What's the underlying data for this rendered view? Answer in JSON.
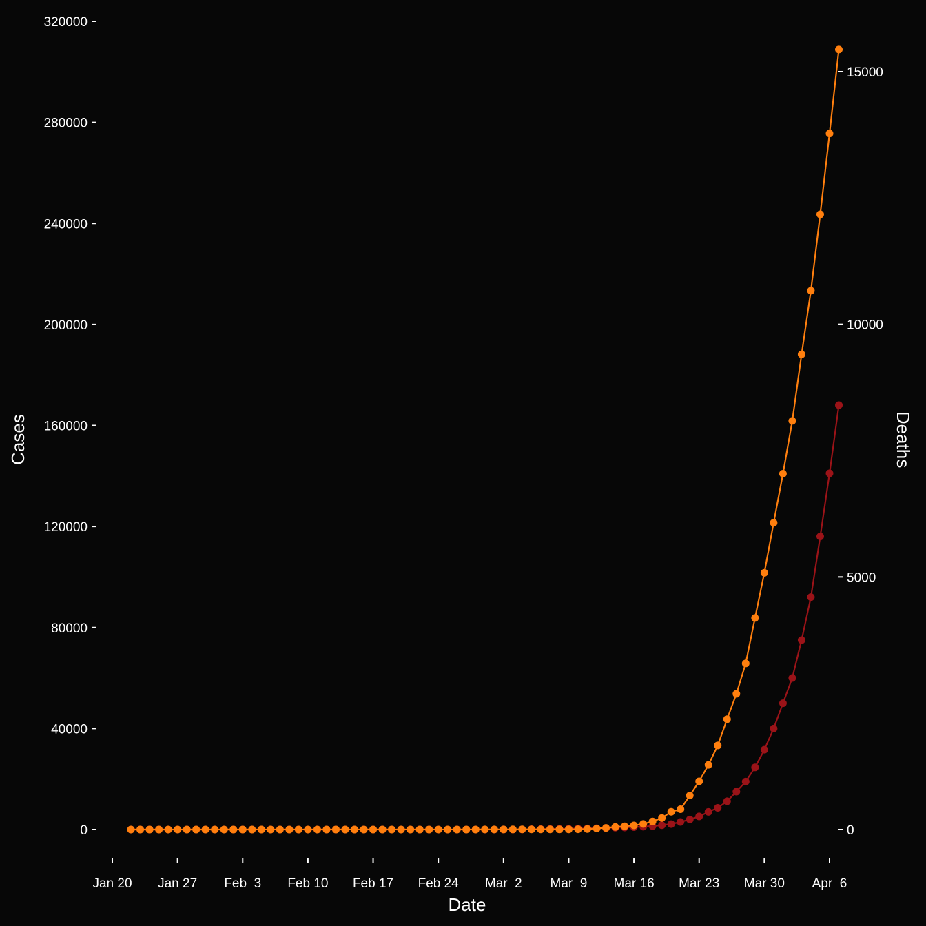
{
  "chart_data": {
    "type": "line",
    "xlabel": "Date",
    "ylabel_left": "Cases",
    "ylabel_right": "Deaths",
    "x_start": "2020-01-22",
    "x_end": "2020-04-03",
    "x_ticks": [
      "Jan 20",
      "Jan 27",
      "Feb  3",
      "Feb 10",
      "Feb 17",
      "Feb 24",
      "Mar  2",
      "Mar  9",
      "Mar 16",
      "Mar 23",
      "Mar 30",
      "Apr  6"
    ],
    "x_tick_dates": [
      "2020-01-20",
      "2020-01-27",
      "2020-02-03",
      "2020-02-10",
      "2020-02-17",
      "2020-02-24",
      "2020-03-02",
      "2020-03-09",
      "2020-03-16",
      "2020-03-23",
      "2020-03-30",
      "2020-04-06"
    ],
    "y_left_ticks": [
      0,
      40000,
      80000,
      120000,
      160000,
      200000,
      240000,
      280000,
      320000
    ],
    "y_right_ticks": [
      0,
      5000,
      10000,
      15000
    ],
    "ylim_left": [
      -15000,
      320000
    ],
    "ylim_right": [
      -750,
      15500
    ],
    "grid": false,
    "background": "#070707",
    "series": [
      {
        "axis": "left",
        "color": "#ff7f0e",
        "values": [
          1,
          1,
          2,
          2,
          5,
          5,
          5,
          5,
          5,
          5,
          6,
          7,
          8,
          11,
          11,
          11,
          11,
          11,
          11,
          11,
          12,
          12,
          13,
          13,
          13,
          13,
          13,
          13,
          13,
          14,
          15,
          15,
          15,
          15,
          15,
          15,
          15,
          15,
          35,
          35,
          35,
          53,
          57,
          60,
          60,
          60,
          69,
          85,
          102,
          214,
          423,
          649,
          1040,
          1299,
          1642,
          2232,
          3203,
          4568,
          7027,
          8040,
          13480,
          19100,
          25600,
          33300,
          43700,
          53740,
          65780,
          83800,
          101650,
          121460,
          140900,
          161800,
          188170,
          213370,
          243600,
          275600,
          308850
        ]
      },
      {
        "axis": "right",
        "color": "#9b1318",
        "values": [
          0,
          0,
          0,
          0,
          0,
          0,
          0,
          0,
          0,
          0,
          0,
          0,
          0,
          0,
          0,
          0,
          0,
          0,
          0,
          0,
          0,
          0,
          0,
          0,
          0,
          0,
          0,
          0,
          0,
          0,
          0,
          0,
          0,
          0,
          0,
          0,
          0,
          0,
          0,
          0,
          1,
          1,
          2,
          6,
          9,
          11,
          12,
          15,
          19,
          22,
          26,
          30,
          38,
          41,
          48,
          57,
          68,
          85,
          108,
          150,
          200,
          260,
          350,
          430,
          560,
          750,
          950,
          1230,
          1580,
          2000,
          2500,
          3000,
          3750,
          4600,
          5800,
          7050,
          8400
        ]
      }
    ]
  }
}
